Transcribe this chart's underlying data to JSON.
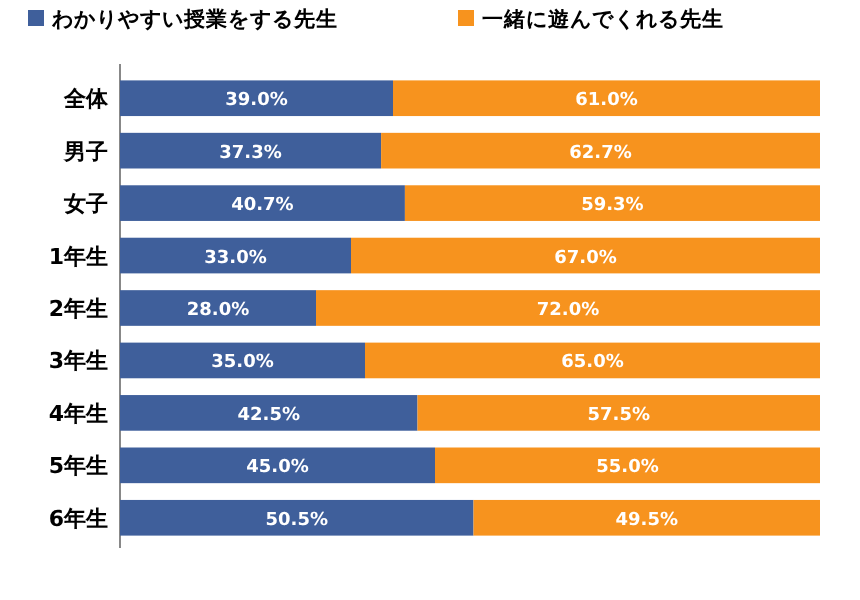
{
  "chart_data": {
    "type": "bar",
    "orientation": "horizontal",
    "stacked": true,
    "legend": "top left",
    "categories": [
      "全体",
      "男子",
      "女子",
      "1年生",
      "2年生",
      "3年生",
      "4年生",
      "5年生",
      "6年生"
    ],
    "series": [
      {
        "name": "わかりやすい授業をする先生",
        "color": "#3f5f9b",
        "values": [
          39.0,
          37.3,
          40.7,
          33.0,
          28.0,
          35.0,
          42.5,
          45.0,
          50.5
        ],
        "value_labels": [
          "39.0%",
          "37.3%",
          "40.7%",
          "33.0%",
          "28.0%",
          "35.0%",
          "42.5%",
          "45.0%",
          "50.5%"
        ]
      },
      {
        "name": "一緒に遊んでくれる先生",
        "color": "#f7931e",
        "values": [
          61.0,
          62.7,
          59.3,
          67.0,
          72.0,
          65.0,
          57.5,
          55.0,
          49.5
        ],
        "value_labels": [
          "61.0%",
          "62.7%",
          "59.3%",
          "67.0%",
          "72.0%",
          "65.0%",
          "57.5%",
          "55.0%",
          "49.5%"
        ]
      }
    ]
  }
}
